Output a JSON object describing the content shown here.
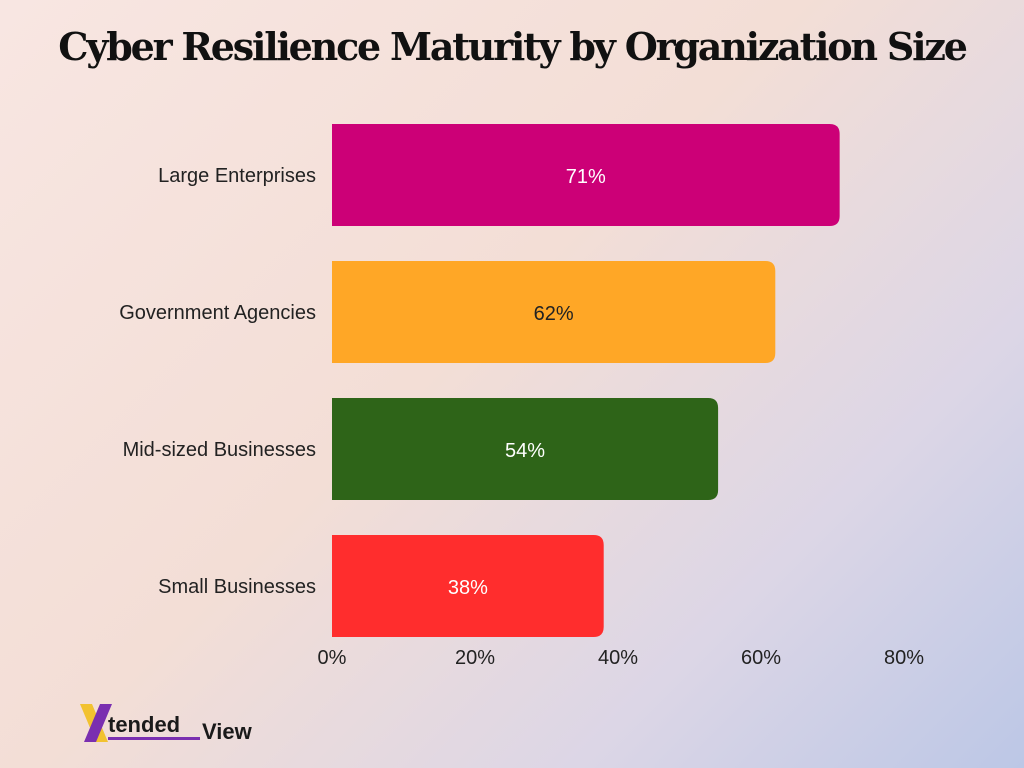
{
  "chart_data": {
    "type": "bar",
    "orientation": "horizontal",
    "title": "Cyber Resilience Maturity by Organization Size",
    "categories": [
      "Large Enterprises",
      "Government Agencies",
      "Mid-sized Businesses",
      "Small Businesses"
    ],
    "values": [
      71,
      62,
      54,
      38
    ],
    "value_labels": [
      "71%",
      "62%",
      "54%",
      "38%"
    ],
    "colors": [
      "#cc0077",
      "#ffa726",
      "#2e6418",
      "#ff2d2d"
    ],
    "label_colors": [
      "#ffffff",
      "#222222",
      "#ffffff",
      "#ffffff"
    ],
    "xlim": [
      0,
      80
    ],
    "xticks": [
      0,
      20,
      40,
      60,
      80
    ],
    "xtick_labels": [
      "0%",
      "20%",
      "40%",
      "60%",
      "80%"
    ],
    "grid": false,
    "legend": "none"
  },
  "logo": {
    "mark": "X",
    "part1": "tended",
    "part2": "View",
    "colors": {
      "mark_left": "#f2c230",
      "mark_right": "#7a2fb0",
      "text": "#1a1a1a",
      "underline": "#7a2fb0"
    }
  }
}
